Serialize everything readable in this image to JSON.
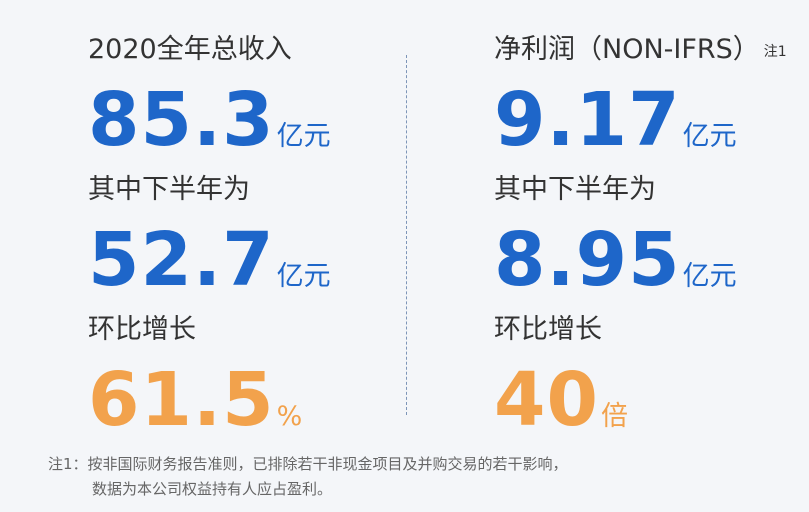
{
  "columns": [
    {
      "title": "2020全年总收入",
      "figures": [
        {
          "value": "85.3",
          "unit": "亿元"
        },
        {
          "label": "其中下半年为",
          "value": "52.7",
          "unit": "亿元"
        },
        {
          "label": "环比增长",
          "value": "61.5",
          "unit": "%"
        }
      ]
    },
    {
      "title": "净利润（NON-IFRS）",
      "note_mark": "注1",
      "figures": [
        {
          "value": "9.17",
          "unit": "亿元"
        },
        {
          "label": "其中下半年为",
          "value": "8.95",
          "unit": "亿元"
        },
        {
          "label": "环比增长",
          "value": "40",
          "unit": "倍"
        }
      ]
    }
  ],
  "footnote": {
    "mark": "注1：",
    "lines": [
      "按非国际财务报告准则，已排除若干非现金项目及并购交易的若干影响，",
      "数据为本公司权益持有人应占盈利。"
    ]
  }
}
